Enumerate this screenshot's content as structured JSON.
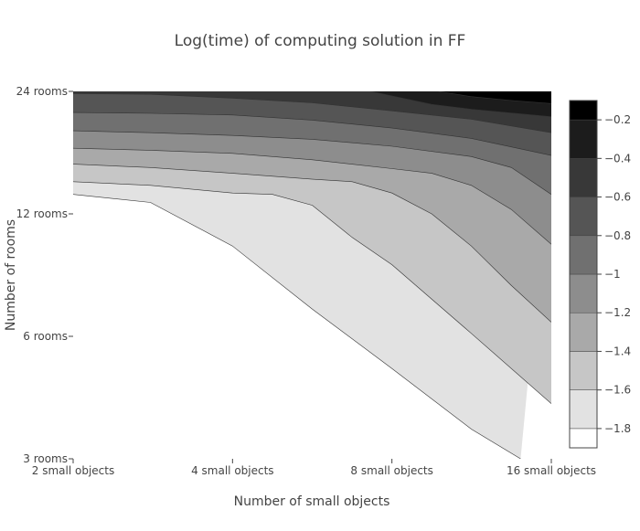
{
  "chart_data": {
    "type": "contour",
    "title": "Log(time) of computing solution in FF",
    "xlabel": "Number of small objects",
    "ylabel": "Number of rooms",
    "x_tick_labels": [
      "2 small objects",
      "4 small objects",
      "8 small objects",
      "16 small objects"
    ],
    "y_tick_labels": [
      "3 rooms",
      "6 rooms",
      "12 rooms",
      "24 rooms"
    ],
    "x_scale": "log",
    "y_scale": "log",
    "xlim": [
      2,
      16
    ],
    "ylim": [
      3,
      24
    ],
    "colorbar": {
      "tick_labels": [
        "−1.8",
        "−1.6",
        "−1.4",
        "−1.2",
        "−1",
        "−0.8",
        "−0.6",
        "−0.4",
        "−0.2"
      ],
      "levels": [
        -1.9,
        -1.8,
        -1.7,
        -1.6,
        -1.5,
        -1.4,
        -1.3,
        -1.2,
        -1.1,
        -1.0,
        -0.9,
        -0.8,
        -0.7,
        -0.6,
        -0.5,
        -0.4,
        -0.3,
        -0.2,
        -0.1
      ],
      "placement": "right"
    },
    "contour_start": -1.8,
    "contour_step": 0.2,
    "contours": [
      {
        "level": -1.8,
        "points": [
          [
            2,
            13.4
          ],
          [
            2.8,
            12.8
          ],
          [
            4,
            10
          ],
          [
            5.66,
            7.0
          ],
          [
            8,
            5.0
          ],
          [
            11.3,
            3.55
          ],
          [
            14,
            3.0
          ]
        ]
      },
      {
        "level": -1.6,
        "points": [
          [
            2,
            14.4
          ],
          [
            2.8,
            14.1
          ],
          [
            4,
            13.5
          ],
          [
            4.76,
            13.4
          ],
          [
            5.66,
            12.6
          ],
          [
            6.73,
            10.5
          ],
          [
            8,
            9.0
          ],
          [
            11.3,
            6.1
          ],
          [
            16,
            4.1
          ]
        ]
      },
      {
        "level": -1.4,
        "points": [
          [
            2,
            15.9
          ],
          [
            2.8,
            15.6
          ],
          [
            4,
            15.1
          ],
          [
            5.66,
            14.6
          ],
          [
            6.73,
            14.4
          ],
          [
            8,
            13.5
          ],
          [
            9.51,
            12.0
          ],
          [
            11.3,
            10.0
          ],
          [
            13.45,
            8.0
          ],
          [
            16,
            6.5
          ]
        ]
      },
      {
        "level": -1.2,
        "points": [
          [
            2,
            17.4
          ],
          [
            2.8,
            17.2
          ],
          [
            4,
            16.9
          ],
          [
            5.66,
            16.3
          ],
          [
            8,
            15.5
          ],
          [
            9.51,
            15.1
          ],
          [
            11.3,
            14.1
          ],
          [
            13.45,
            12.3
          ],
          [
            16,
            10.1
          ]
        ]
      },
      {
        "level": -1.0,
        "points": [
          [
            2,
            19.2
          ],
          [
            2.8,
            19.0
          ],
          [
            4,
            18.7
          ],
          [
            5.66,
            18.3
          ],
          [
            8,
            17.6
          ],
          [
            11.3,
            16.6
          ],
          [
            13.45,
            15.6
          ],
          [
            16,
            13.4
          ]
        ]
      },
      {
        "level": -0.8,
        "points": [
          [
            2,
            21.3
          ],
          [
            2.8,
            21.2
          ],
          [
            4,
            21.0
          ],
          [
            5.66,
            20.4
          ],
          [
            8,
            19.5
          ],
          [
            11.3,
            18.4
          ],
          [
            16,
            16.7
          ]
        ]
      },
      {
        "level": -0.6,
        "points": [
          [
            2,
            23.7
          ],
          [
            2.8,
            23.6
          ],
          [
            4,
            23.1
          ],
          [
            5.66,
            22.5
          ],
          [
            8,
            21.5
          ],
          [
            11.3,
            20.5
          ],
          [
            16,
            19.0
          ]
        ]
      },
      {
        "level": -0.4,
        "points": [
          [
            7.3,
            24
          ],
          [
            8,
            23.4
          ],
          [
            9.51,
            22.3
          ],
          [
            11.3,
            21.7
          ],
          [
            16,
            20.8
          ]
        ]
      },
      {
        "level": -0.2,
        "points": [
          [
            9.8,
            24
          ],
          [
            11.3,
            23.3
          ],
          [
            13.45,
            22.8
          ],
          [
            16,
            22.4
          ]
        ]
      }
    ]
  }
}
